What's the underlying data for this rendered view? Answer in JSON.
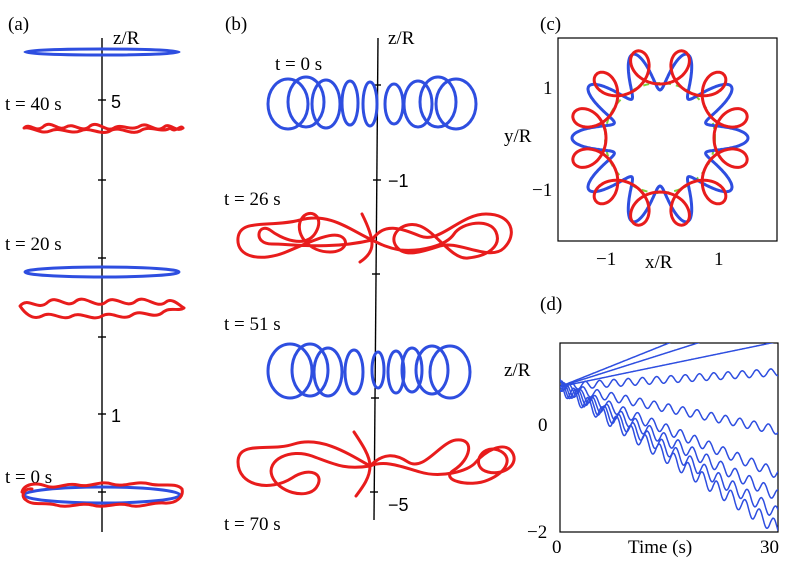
{
  "panels": {
    "a": {
      "label": "(a)",
      "axis_label": "z/R",
      "ticks": [
        "5",
        "1"
      ],
      "times": [
        "t = 40 s",
        "t = 20 s",
        "t = 0 s"
      ]
    },
    "b": {
      "label": "(b)",
      "axis_label": "z/R",
      "ticks": [
        "−1",
        "−5"
      ],
      "times": [
        "t = 0 s",
        "t = 26 s",
        "t = 51 s",
        "t = 70 s"
      ]
    },
    "c": {
      "label": "(c)",
      "xlabel": "x/R",
      "ylabel": "y/R",
      "xticks": [
        "−1",
        "1"
      ],
      "yticks": [
        "1",
        "−1"
      ]
    },
    "d": {
      "label": "(d)",
      "xlabel": "Time (s)",
      "ylabel": "z/R",
      "xticks": [
        "0",
        "30"
      ],
      "yticks": [
        "0",
        "−2"
      ]
    }
  },
  "colors": {
    "blue": "#2e4ee0",
    "red": "#e81c1c",
    "green": "#7ccf3a"
  },
  "chart_data": [
    {
      "type": "line",
      "panel": "d",
      "xlabel": "Time (s)",
      "ylabel": "z/R",
      "xlim": [
        0,
        30
      ],
      "ylim": [
        -2,
        0.6
      ],
      "series": [
        {
          "x": [
            0,
            30
          ],
          "y": [
            0,
            1.2
          ]
        },
        {
          "x": [
            0,
            30
          ],
          "y": [
            0,
            0.95
          ]
        },
        {
          "x": [
            0,
            30
          ],
          "y": [
            0,
            0.62
          ]
        },
        {
          "x": [
            0,
            30
          ],
          "y": [
            0,
            0.2
          ]
        },
        {
          "x": [
            0,
            30
          ],
          "y": [
            0,
            -0.6
          ]
        },
        {
          "x": [
            0,
            30
          ],
          "y": [
            0,
            -1.2
          ]
        },
        {
          "x": [
            0,
            30
          ],
          "y": [
            0,
            -1.5
          ]
        },
        {
          "x": [
            0,
            30
          ],
          "y": [
            0,
            -1.75
          ]
        },
        {
          "x": [
            0,
            30
          ],
          "y": [
            0,
            -1.95
          ]
        }
      ]
    }
  ]
}
